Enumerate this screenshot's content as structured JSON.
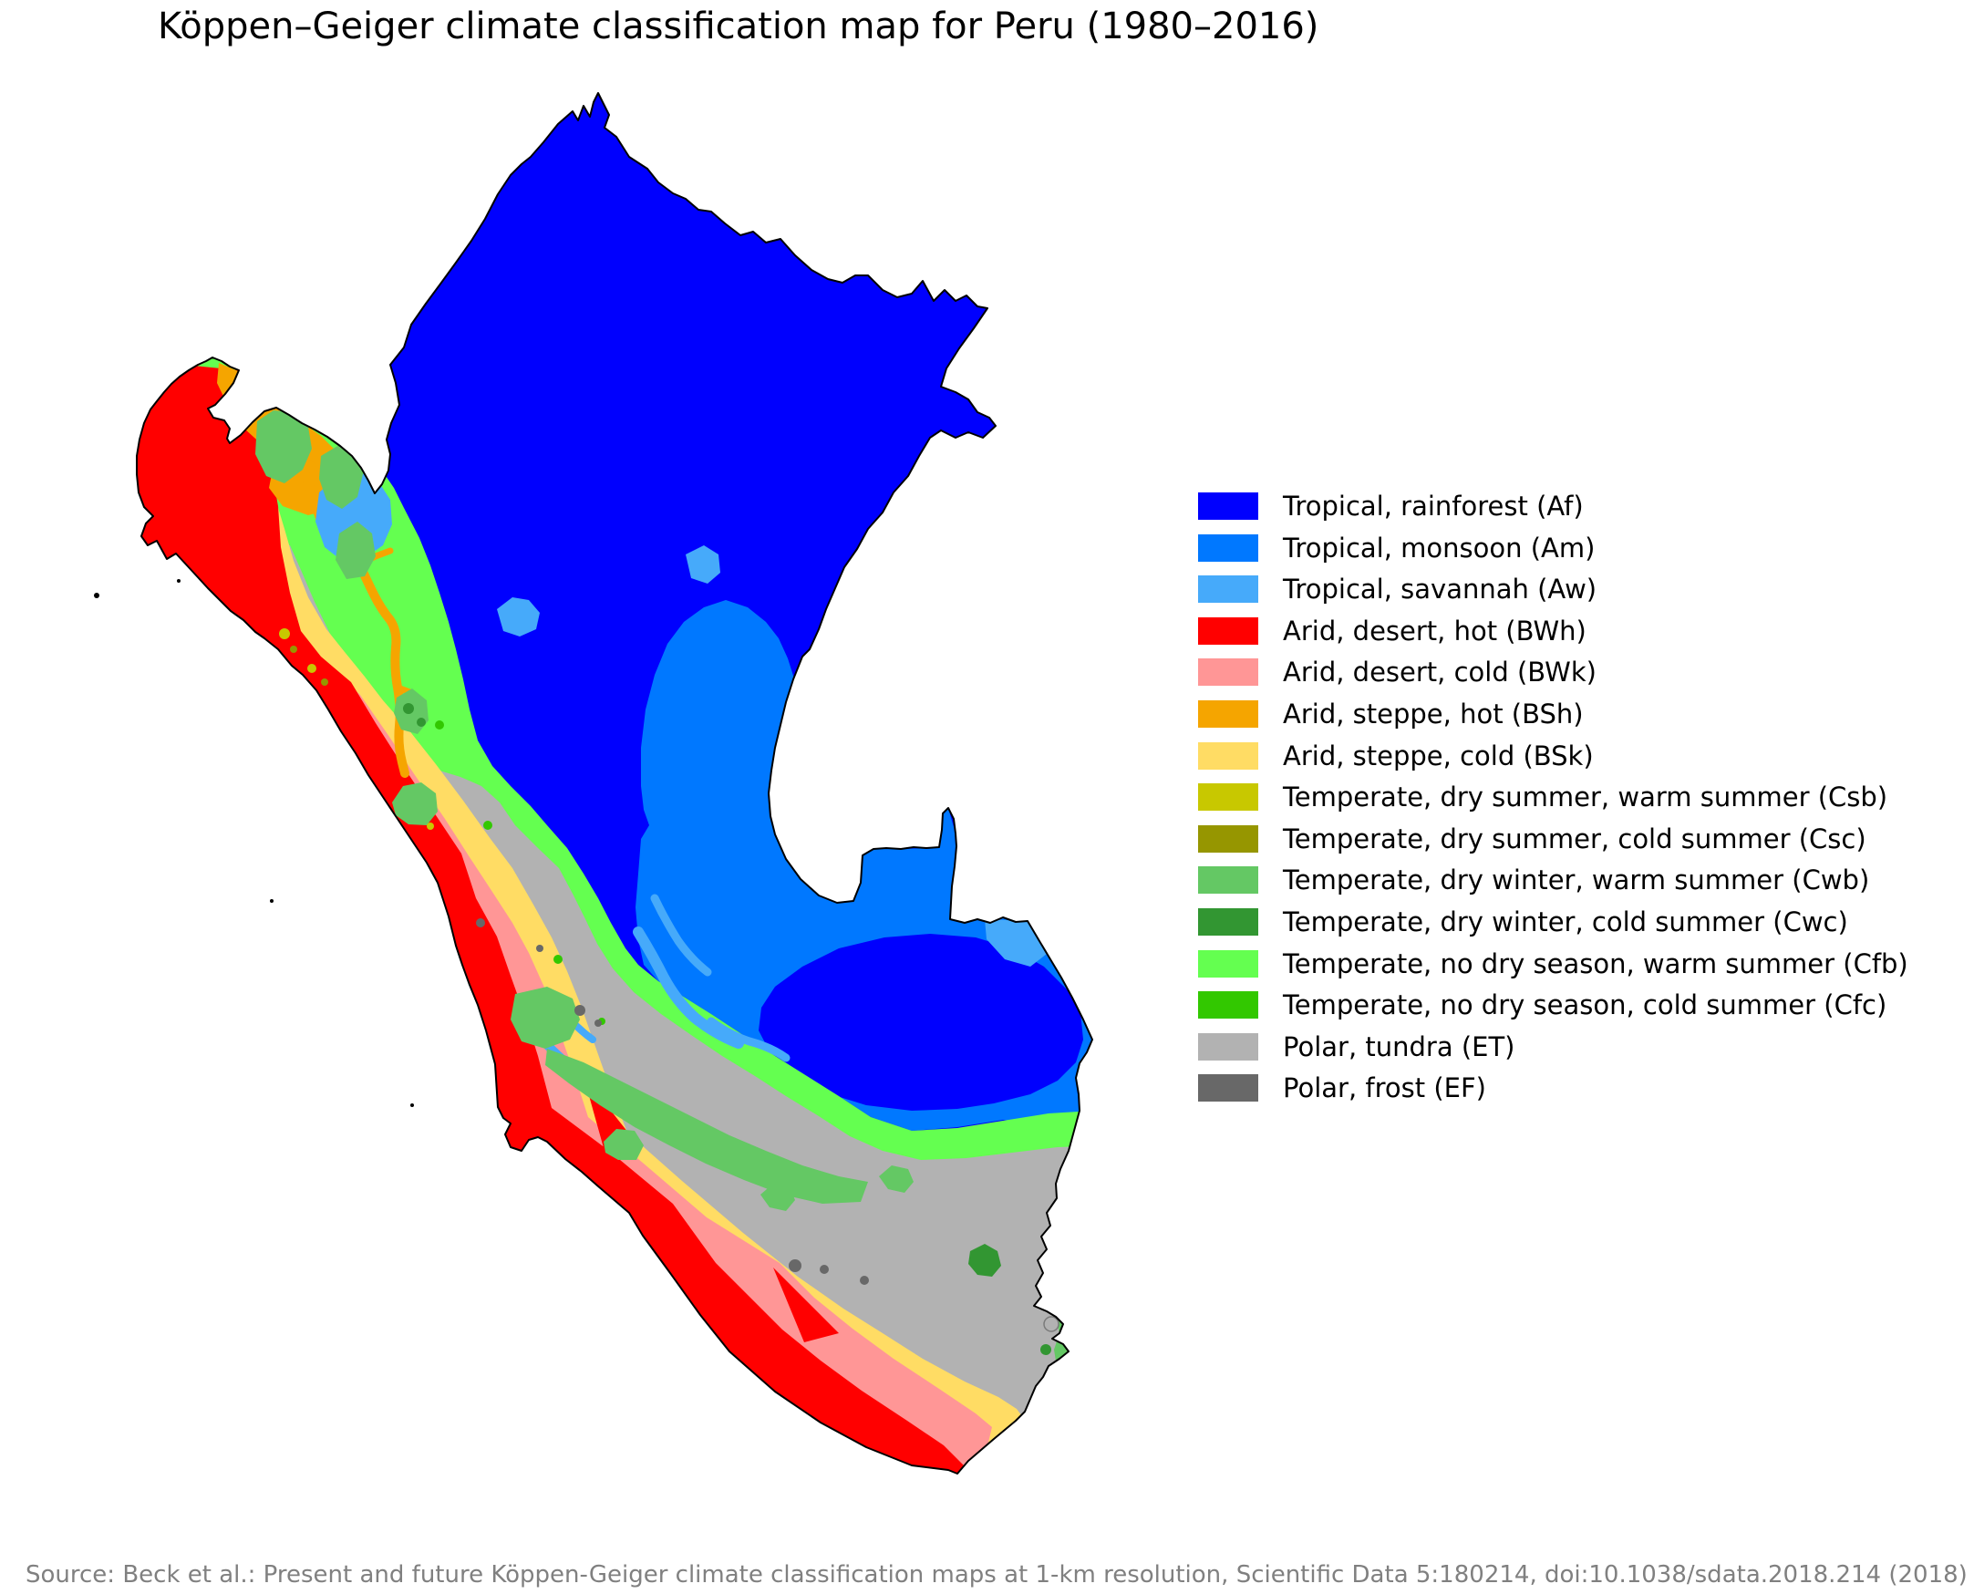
{
  "title": "Köppen–Geiger climate classification map for Peru (1980–2016)",
  "source": "Source: Beck et al.: Present and future Köppen-Geiger climate classification maps at 1-km resolution, Scientific Data 5:180214, doi:10.1038/sdata.2018.214 (2018)",
  "map": {
    "country": "Peru",
    "background_color": "#ffffff",
    "border_color": "#000000",
    "lake_fill": "#b2b2b2",
    "zone_colors": {
      "Af": "#0000fe",
      "Am": "#0078ff",
      "Aw": "#46aafa",
      "BWh": "#ff0000",
      "BWk": "#ff9696",
      "BSh": "#f5a500",
      "BSk": "#ffdc64",
      "Csb": "#c8c800",
      "Csc": "#969600",
      "Cwb": "#64c864",
      "Cwc": "#329632",
      "Cfb": "#64ff50",
      "Cfc": "#32c800",
      "ET": "#b2b2b2",
      "EF": "#686868"
    }
  },
  "legend": {
    "items": [
      {
        "code": "Af",
        "label": "Tropical, rainforest (Af)",
        "color": "#0000fe"
      },
      {
        "code": "Am",
        "label": "Tropical, monsoon (Am)",
        "color": "#0078ff"
      },
      {
        "code": "Aw",
        "label": "Tropical, savannah (Aw)",
        "color": "#46aafa"
      },
      {
        "code": "BWh",
        "label": "Arid, desert, hot (BWh)",
        "color": "#ff0000"
      },
      {
        "code": "BWk",
        "label": "Arid, desert, cold (BWk)",
        "color": "#ff9696"
      },
      {
        "code": "BSh",
        "label": "Arid, steppe, hot (BSh)",
        "color": "#f5a500"
      },
      {
        "code": "BSk",
        "label": "Arid, steppe, cold (BSk)",
        "color": "#ffdc64"
      },
      {
        "code": "Csb",
        "label": "Temperate, dry summer, warm summer (Csb)",
        "color": "#c8c800"
      },
      {
        "code": "Csc",
        "label": "Temperate, dry summer, cold summer (Csc)",
        "color": "#969600"
      },
      {
        "code": "Cwb",
        "label": "Temperate, dry winter, warm summer (Cwb)",
        "color": "#64c864"
      },
      {
        "code": "Cwc",
        "label": "Temperate, dry winter, cold summer (Cwc)",
        "color": "#329632"
      },
      {
        "code": "Cfb",
        "label": "Temperate, no dry season, warm summer (Cfb)",
        "color": "#64ff50"
      },
      {
        "code": "Cfc",
        "label": "Temperate, no dry season, cold summer (Cfc)",
        "color": "#32c800"
      },
      {
        "code": "ET",
        "label": "Polar, tundra (ET)",
        "color": "#b2b2b2"
      },
      {
        "code": "EF",
        "label": "Polar, frost (EF)",
        "color": "#686868"
      }
    ]
  }
}
